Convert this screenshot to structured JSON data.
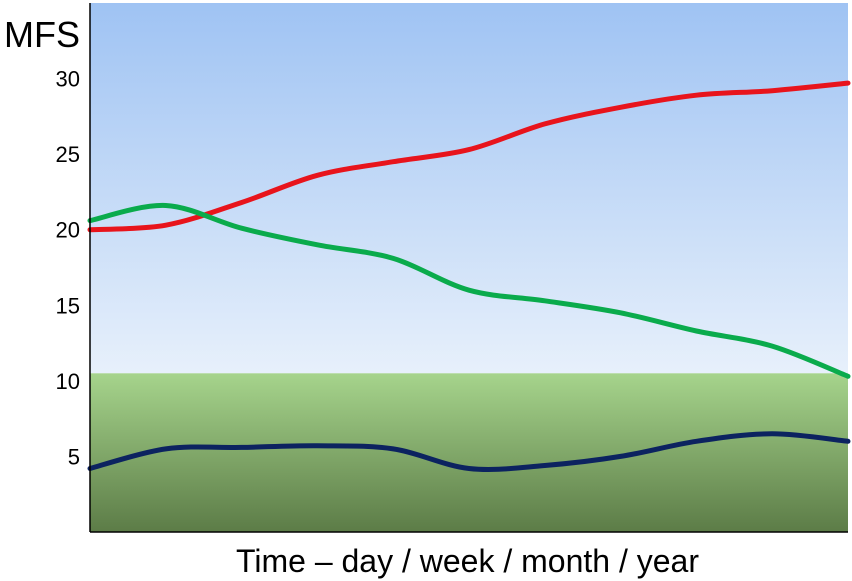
{
  "chart_data": {
    "type": "line",
    "title": "",
    "ylabel": "MFS",
    "xlabel": "Time – day / week / month / year",
    "ylim": [
      0,
      35
    ],
    "yticks": [
      5,
      10,
      15,
      20,
      25,
      30
    ],
    "grid": false,
    "legend": "none",
    "bands": [
      {
        "from": 10.5,
        "to": 35,
        "color_top": "#9fc3f3",
        "color_bottom": "#e7f0fb"
      },
      {
        "from": 0,
        "to": 10.5,
        "color_top": "#a6d48c",
        "color_bottom": "#5c7c47"
      }
    ],
    "x": [
      0,
      0.1,
      0.2,
      0.3,
      0.4,
      0.5,
      0.6,
      0.7,
      0.8,
      0.9,
      1.0
    ],
    "series": [
      {
        "color": "#e8141c",
        "values": [
          20.0,
          20.3,
          21.8,
          23.6,
          24.5,
          25.3,
          27.0,
          28.1,
          28.9,
          29.2,
          29.7
        ]
      },
      {
        "color": "#0aab4c",
        "values": [
          20.6,
          21.6,
          20.1,
          19.0,
          18.1,
          16.0,
          15.3,
          14.5,
          13.3,
          12.3,
          10.3
        ]
      },
      {
        "color": "#0c2360",
        "values": [
          4.2,
          5.5,
          5.6,
          5.7,
          5.5,
          4.2,
          4.4,
          5.0,
          6.0,
          6.5,
          6.0
        ]
      }
    ]
  }
}
